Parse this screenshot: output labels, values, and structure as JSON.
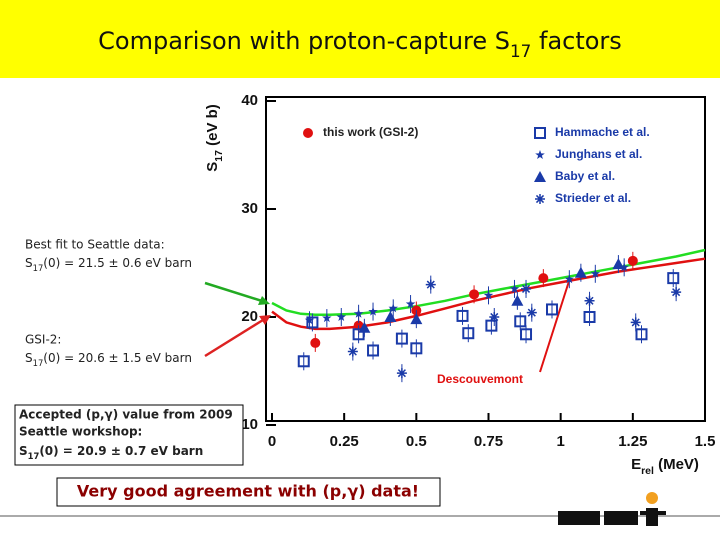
{
  "title": [
    "Comparison with proton-capture S",
    "17",
    " factors"
  ],
  "chart_data": {
    "type": "scatter",
    "ylabel": [
      "S",
      "17",
      " (eV b)"
    ],
    "xlabel": [
      "E",
      "rel",
      " (MeV)"
    ],
    "xlim": [
      0,
      1.5
    ],
    "ylim": [
      10,
      40
    ],
    "xticks": [
      0,
      0.25,
      0.5,
      0.75,
      1,
      1.25,
      1.5
    ],
    "yticks": [
      10,
      20,
      30,
      40
    ],
    "series": [
      {
        "name": "this work (GSI-2)",
        "color": "#e01010",
        "marker": "circle",
        "x": [
          0.15,
          0.3,
          0.5,
          0.7,
          0.94,
          1.25
        ],
        "values": [
          17.6,
          19.2,
          20.6,
          22.1,
          23.6,
          25.2
        ]
      },
      {
        "name": "Hammache et al.",
        "color": "#1a3aa8",
        "marker": "square",
        "x": [
          0.11,
          0.14,
          0.3,
          0.35,
          0.45,
          0.5,
          0.66,
          0.68,
          0.76,
          0.86,
          0.88,
          0.97,
          1.1,
          1.28,
          1.39
        ],
        "values": [
          15.9,
          19.5,
          18.4,
          16.9,
          18.0,
          17.1,
          20.1,
          18.5,
          19.2,
          19.6,
          18.4,
          20.7,
          20.0,
          18.4,
          23.6
        ]
      },
      {
        "name": "Junghans et al.",
        "color": "#1a3aa8",
        "marker": "star",
        "x": [
          0.13,
          0.19,
          0.24,
          0.3,
          0.35,
          0.42,
          0.48,
          0.75,
          0.84,
          1.03,
          1.12,
          1.22
        ],
        "values": [
          19.7,
          19.9,
          20.0,
          20.3,
          20.5,
          20.8,
          21.2,
          22.0,
          22.6,
          23.5,
          24.0,
          24.6
        ]
      },
      {
        "name": "Baby et al.",
        "color": "#1a3aa8",
        "marker": "triangle",
        "x": [
          0.32,
          0.41,
          0.5,
          0.85,
          1.07,
          1.2
        ],
        "values": [
          19.0,
          20.0,
          19.8,
          21.5,
          24.1,
          24.9
        ]
      },
      {
        "name": "Strieder et al.",
        "color": "#1a3aa8",
        "marker": "asterisk",
        "x": [
          0.28,
          0.45,
          0.55,
          0.77,
          0.88,
          0.9,
          1.1,
          1.26,
          1.4
        ],
        "values": [
          16.8,
          14.8,
          23.0,
          20.0,
          22.6,
          20.4,
          21.5,
          19.5,
          22.3
        ]
      }
    ],
    "curves": [
      {
        "color": "#22dd22",
        "x": [
          0,
          0.05,
          0.1,
          0.15,
          0.2,
          0.3,
          0.4,
          0.5,
          0.6,
          0.7,
          0.8,
          0.9,
          1.0,
          1.1,
          1.2,
          1.3,
          1.4,
          1.5
        ],
        "y": [
          21.3,
          20.6,
          20.3,
          20.2,
          20.2,
          20.3,
          20.6,
          21.0,
          21.5,
          22.1,
          22.6,
          23.1,
          23.6,
          24.1,
          24.6,
          25.1,
          25.6,
          26.2
        ]
      },
      {
        "name": "Descouvemont",
        "color": "#e01010",
        "x": [
          0,
          0.05,
          0.1,
          0.15,
          0.2,
          0.3,
          0.4,
          0.5,
          0.6,
          0.7,
          0.8,
          0.9,
          1.0,
          1.1,
          1.2,
          1.3,
          1.4,
          1.5
        ],
        "y": [
          20.5,
          19.5,
          19.1,
          18.9,
          18.9,
          19.1,
          19.5,
          20.1,
          20.8,
          21.5,
          22.1,
          22.7,
          23.2,
          23.7,
          24.2,
          24.6,
          25.0,
          25.4
        ]
      }
    ]
  },
  "notes": {
    "best_fit": {
      "line1": "Best fit to Seattle data:",
      "line2": [
        "S",
        "17",
        "(0) = 21.5 ± 0.6 eV barn"
      ]
    },
    "gsi2": {
      "line1": "GSI-2:",
      "line2": [
        "S",
        "17",
        "(0) = 20.6 ± 1.5 eV barn"
      ]
    },
    "accepted": {
      "line1": "Accepted (p,γ) value from 2009",
      "line2": "Seattle workshop:",
      "line3": [
        "S",
        "17",
        "(0) = 20.9 ± 0.7 eV barn"
      ]
    },
    "conclusion": "Very good agreement with (p,γ) data!"
  }
}
